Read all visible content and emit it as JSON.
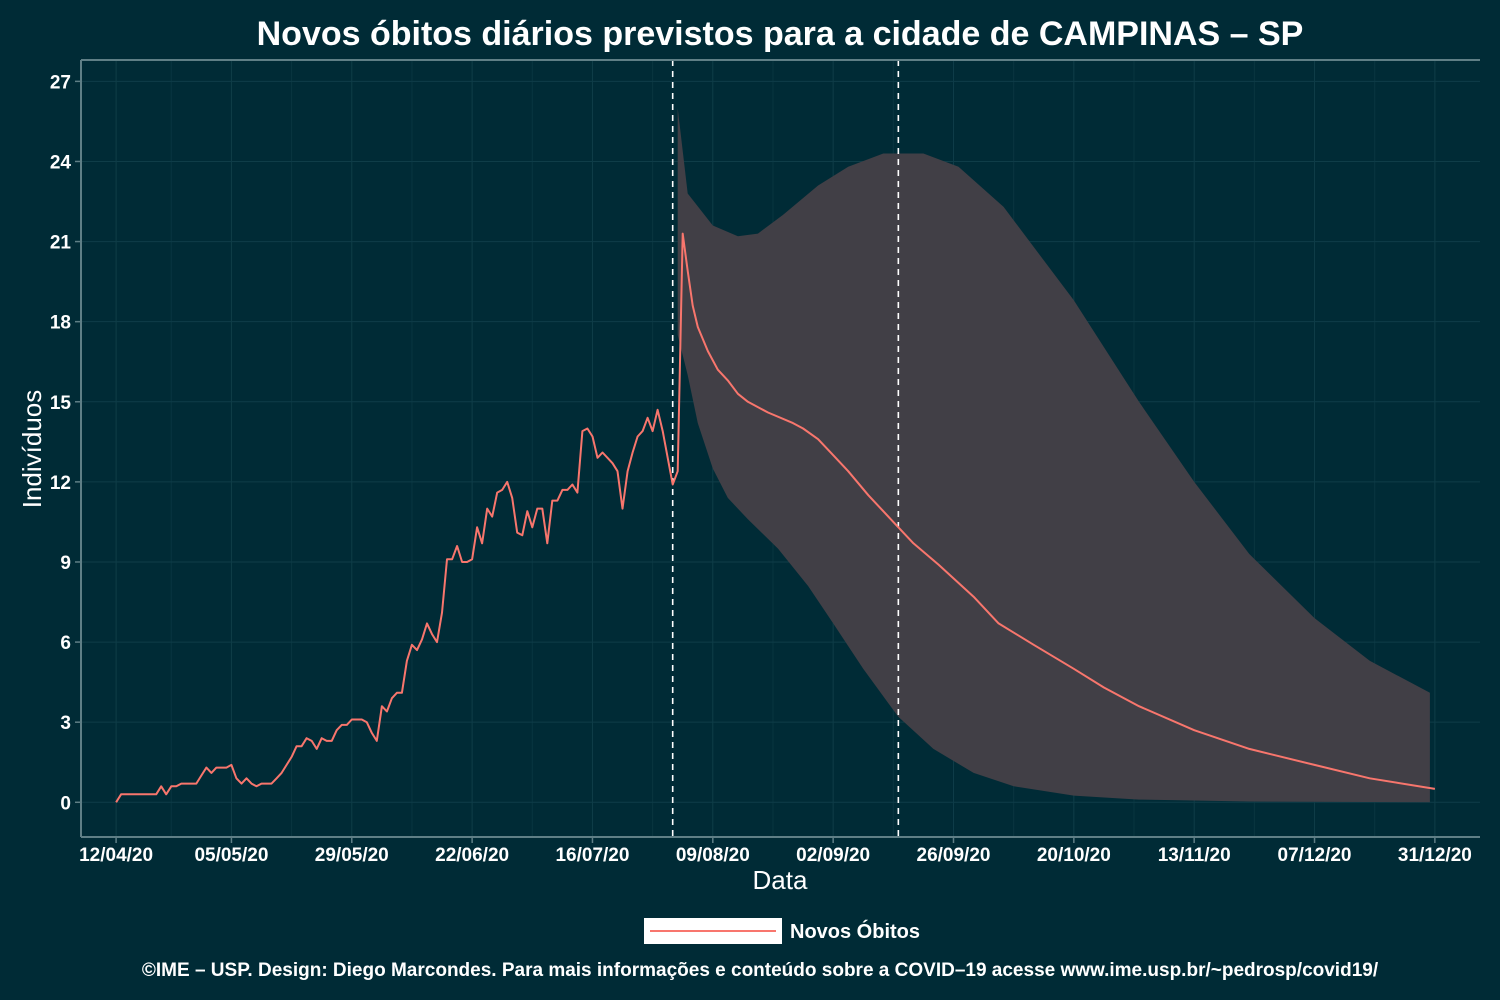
{
  "colors": {
    "background": "#002b36",
    "grid": "#0f3d48",
    "axis": "#5f7f86",
    "line": "#f8766d",
    "ribbon": "#413f46",
    "vline": "#ffffff",
    "text": "#ffffff"
  },
  "chart_data": {
    "type": "line",
    "title": "Novos óbitos diários previstos para a cidade de CAMPINAS – SP",
    "xlabel": "Data",
    "ylabel": "Indivíduos",
    "x_start": "2020-04-12",
    "x_end": "2020-12-31",
    "xlim": [
      "2020-04-05",
      "2021-01-09"
    ],
    "ylim": [
      -1.3,
      27.8
    ],
    "xticks": [
      {
        "date": "2020-04-12",
        "label": "12/04/20"
      },
      {
        "date": "2020-05-05",
        "label": "05/05/20"
      },
      {
        "date": "2020-05-29",
        "label": "29/05/20"
      },
      {
        "date": "2020-06-22",
        "label": "22/06/20"
      },
      {
        "date": "2020-07-16",
        "label": "16/07/20"
      },
      {
        "date": "2020-08-09",
        "label": "09/08/20"
      },
      {
        "date": "2020-09-02",
        "label": "02/09/20"
      },
      {
        "date": "2020-09-26",
        "label": "26/09/20"
      },
      {
        "date": "2020-10-20",
        "label": "20/10/20"
      },
      {
        "date": "2020-11-13",
        "label": "13/11/20"
      },
      {
        "date": "2020-12-07",
        "label": "07/12/20"
      },
      {
        "date": "2020-12-31",
        "label": "31/12/20"
      }
    ],
    "yticks": [
      0,
      3,
      6,
      9,
      12,
      15,
      18,
      21,
      24,
      27
    ],
    "grid": true,
    "legend_position": "bottom",
    "vlines": [
      "2020-08-01",
      "2020-09-15"
    ],
    "series": [
      {
        "name": "Novos Óbitos",
        "points": [
          [
            "2020-04-12",
            0.0
          ],
          [
            "2020-04-13",
            0.3
          ],
          [
            "2020-04-15",
            0.3
          ],
          [
            "2020-04-17",
            0.3
          ],
          [
            "2020-04-19",
            0.3
          ],
          [
            "2020-04-20",
            0.3
          ],
          [
            "2020-04-21",
            0.6
          ],
          [
            "2020-04-22",
            0.3
          ],
          [
            "2020-04-23",
            0.6
          ],
          [
            "2020-04-24",
            0.6
          ],
          [
            "2020-04-25",
            0.7
          ],
          [
            "2020-04-26",
            0.7
          ],
          [
            "2020-04-27",
            0.7
          ],
          [
            "2020-04-28",
            0.7
          ],
          [
            "2020-04-29",
            1.0
          ],
          [
            "2020-04-30",
            1.3
          ],
          [
            "2020-05-01",
            1.1
          ],
          [
            "2020-05-02",
            1.3
          ],
          [
            "2020-05-03",
            1.3
          ],
          [
            "2020-05-04",
            1.3
          ],
          [
            "2020-05-05",
            1.4
          ],
          [
            "2020-05-06",
            0.9
          ],
          [
            "2020-05-07",
            0.7
          ],
          [
            "2020-05-08",
            0.9
          ],
          [
            "2020-05-09",
            0.7
          ],
          [
            "2020-05-10",
            0.6
          ],
          [
            "2020-05-11",
            0.7
          ],
          [
            "2020-05-12",
            0.7
          ],
          [
            "2020-05-13",
            0.7
          ],
          [
            "2020-05-14",
            0.9
          ],
          [
            "2020-05-15",
            1.1
          ],
          [
            "2020-05-16",
            1.4
          ],
          [
            "2020-05-17",
            1.7
          ],
          [
            "2020-05-18",
            2.1
          ],
          [
            "2020-05-19",
            2.1
          ],
          [
            "2020-05-20",
            2.4
          ],
          [
            "2020-05-21",
            2.3
          ],
          [
            "2020-05-22",
            2.0
          ],
          [
            "2020-05-23",
            2.4
          ],
          [
            "2020-05-24",
            2.3
          ],
          [
            "2020-05-25",
            2.3
          ],
          [
            "2020-05-26",
            2.7
          ],
          [
            "2020-05-27",
            2.9
          ],
          [
            "2020-05-28",
            2.9
          ],
          [
            "2020-05-29",
            3.1
          ],
          [
            "2020-05-30",
            3.1
          ],
          [
            "2020-05-31",
            3.1
          ],
          [
            "2020-06-01",
            3.0
          ],
          [
            "2020-06-02",
            2.6
          ],
          [
            "2020-06-03",
            2.3
          ],
          [
            "2020-06-04",
            3.6
          ],
          [
            "2020-06-05",
            3.4
          ],
          [
            "2020-06-06",
            3.9
          ],
          [
            "2020-06-07",
            4.1
          ],
          [
            "2020-06-08",
            4.1
          ],
          [
            "2020-06-09",
            5.3
          ],
          [
            "2020-06-10",
            5.9
          ],
          [
            "2020-06-11",
            5.7
          ],
          [
            "2020-06-12",
            6.1
          ],
          [
            "2020-06-13",
            6.7
          ],
          [
            "2020-06-14",
            6.3
          ],
          [
            "2020-06-15",
            6.0
          ],
          [
            "2020-06-16",
            7.1
          ],
          [
            "2020-06-17",
            9.1
          ],
          [
            "2020-06-18",
            9.1
          ],
          [
            "2020-06-19",
            9.6
          ],
          [
            "2020-06-20",
            9.0
          ],
          [
            "2020-06-21",
            9.0
          ],
          [
            "2020-06-22",
            9.1
          ],
          [
            "2020-06-23",
            10.3
          ],
          [
            "2020-06-24",
            9.7
          ],
          [
            "2020-06-25",
            11.0
          ],
          [
            "2020-06-26",
            10.7
          ],
          [
            "2020-06-27",
            11.6
          ],
          [
            "2020-06-28",
            11.7
          ],
          [
            "2020-06-29",
            12.0
          ],
          [
            "2020-06-30",
            11.4
          ],
          [
            "2020-07-01",
            10.1
          ],
          [
            "2020-07-02",
            10.0
          ],
          [
            "2020-07-03",
            10.9
          ],
          [
            "2020-07-04",
            10.3
          ],
          [
            "2020-07-05",
            11.0
          ],
          [
            "2020-07-06",
            11.0
          ],
          [
            "2020-07-07",
            9.7
          ],
          [
            "2020-07-08",
            11.3
          ],
          [
            "2020-07-09",
            11.3
          ],
          [
            "2020-07-10",
            11.7
          ],
          [
            "2020-07-11",
            11.7
          ],
          [
            "2020-07-12",
            11.9
          ],
          [
            "2020-07-13",
            11.6
          ],
          [
            "2020-07-14",
            13.9
          ],
          [
            "2020-07-15",
            14.0
          ],
          [
            "2020-07-16",
            13.7
          ],
          [
            "2020-07-17",
            12.9
          ],
          [
            "2020-07-18",
            13.1
          ],
          [
            "2020-07-19",
            12.9
          ],
          [
            "2020-07-20",
            12.7
          ],
          [
            "2020-07-21",
            12.4
          ],
          [
            "2020-07-22",
            11.0
          ],
          [
            "2020-07-23",
            12.4
          ],
          [
            "2020-07-24",
            13.1
          ],
          [
            "2020-07-25",
            13.7
          ],
          [
            "2020-07-26",
            13.9
          ],
          [
            "2020-07-27",
            14.4
          ],
          [
            "2020-07-28",
            13.9
          ],
          [
            "2020-07-29",
            14.7
          ],
          [
            "2020-07-30",
            13.9
          ],
          [
            "2020-07-31",
            12.9
          ],
          [
            "2020-08-01",
            11.9
          ],
          [
            "2020-08-02",
            12.4
          ],
          [
            "2020-08-03",
            21.3
          ],
          [
            "2020-08-04",
            19.9
          ],
          [
            "2020-08-05",
            18.6
          ],
          [
            "2020-08-06",
            17.8
          ],
          [
            "2020-08-08",
            16.9
          ],
          [
            "2020-08-10",
            16.2
          ],
          [
            "2020-08-12",
            15.8
          ],
          [
            "2020-08-14",
            15.3
          ],
          [
            "2020-08-16",
            15.0
          ],
          [
            "2020-08-20",
            14.6
          ],
          [
            "2020-08-25",
            14.2
          ],
          [
            "2020-08-27",
            14.0
          ],
          [
            "2020-08-30",
            13.6
          ],
          [
            "2020-09-02",
            13.0
          ],
          [
            "2020-09-05",
            12.4
          ],
          [
            "2020-09-09",
            11.5
          ],
          [
            "2020-09-14",
            10.5
          ],
          [
            "2020-09-18",
            9.7
          ],
          [
            "2020-09-23",
            8.9
          ],
          [
            "2020-09-30",
            7.7
          ],
          [
            "2020-10-05",
            6.7
          ],
          [
            "2020-10-12",
            5.9
          ],
          [
            "2020-10-20",
            5.0
          ],
          [
            "2020-10-26",
            4.3
          ],
          [
            "2020-11-02",
            3.6
          ],
          [
            "2020-11-13",
            2.7
          ],
          [
            "2020-11-24",
            2.0
          ],
          [
            "2020-12-07",
            1.4
          ],
          [
            "2020-12-18",
            0.9
          ],
          [
            "2020-12-31",
            0.5
          ]
        ]
      }
    ],
    "ribbon": {
      "upper": [
        [
          "2020-08-02",
          26.0
        ],
        [
          "2020-08-04",
          22.8
        ],
        [
          "2020-08-09",
          21.6
        ],
        [
          "2020-08-14",
          21.2
        ],
        [
          "2020-08-18",
          21.3
        ],
        [
          "2020-08-23",
          22.0
        ],
        [
          "2020-08-30",
          23.1
        ],
        [
          "2020-09-05",
          23.8
        ],
        [
          "2020-09-12",
          24.3
        ],
        [
          "2020-09-20",
          24.3
        ],
        [
          "2020-09-27",
          23.8
        ],
        [
          "2020-10-06",
          22.3
        ],
        [
          "2020-10-20",
          18.8
        ],
        [
          "2020-11-02",
          15.0
        ],
        [
          "2020-11-13",
          12.0
        ],
        [
          "2020-11-24",
          9.3
        ],
        [
          "2020-12-07",
          6.9
        ],
        [
          "2020-12-18",
          5.3
        ],
        [
          "2020-12-30",
          4.1
        ]
      ],
      "lower": [
        [
          "2020-08-02",
          17.5
        ],
        [
          "2020-08-04",
          16.0
        ],
        [
          "2020-08-06",
          14.2
        ],
        [
          "2020-08-09",
          12.5
        ],
        [
          "2020-08-12",
          11.4
        ],
        [
          "2020-08-16",
          10.6
        ],
        [
          "2020-08-22",
          9.5
        ],
        [
          "2020-08-28",
          8.1
        ],
        [
          "2020-09-02",
          6.7
        ],
        [
          "2020-09-08",
          5.0
        ],
        [
          "2020-09-15",
          3.2
        ],
        [
          "2020-09-22",
          2.0
        ],
        [
          "2020-09-30",
          1.1
        ],
        [
          "2020-10-08",
          0.6
        ],
        [
          "2020-10-20",
          0.25
        ],
        [
          "2020-11-02",
          0.1
        ],
        [
          "2020-11-24",
          0.03
        ],
        [
          "2020-12-30",
          0.0
        ]
      ]
    }
  },
  "legend": {
    "label": "Novos Óbitos"
  },
  "caption": "©IME – USP. Design: Diego Marcondes. Para mais informações e conteúdo sobre a COVID–19 acesse www.ime.usp.br/~pedrosp/covid19/"
}
